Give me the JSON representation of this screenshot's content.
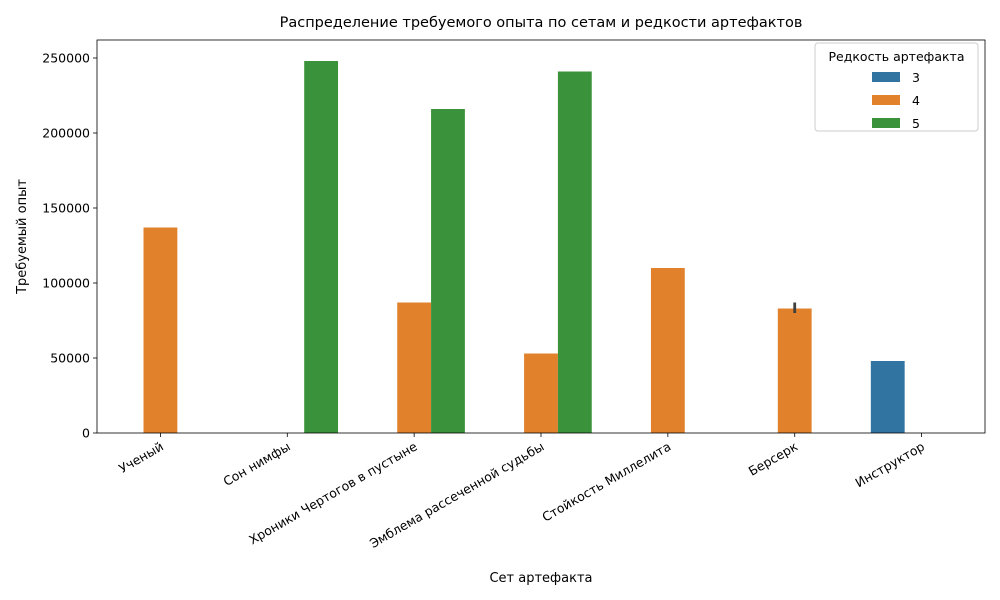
{
  "chart_data": {
    "type": "bar",
    "title": "Распределение требуемого опыта по сетам и редкости артефактов",
    "xlabel": "Сет артефакта",
    "ylabel": "Требуемый опыт",
    "categories": [
      "Ученый",
      "Сон нимфы",
      "Хроники Чертогов в пустыне",
      "Эмблема рассеченной судьбы",
      "Стойкость Миллелита",
      "Берсерк",
      "Инструктор"
    ],
    "ylim": [
      0,
      262000
    ],
    "yticks": [
      0,
      50000,
      100000,
      150000,
      200000,
      250000
    ],
    "legend": {
      "title": "Редкость артефакта",
      "placement": "top-right"
    },
    "series": [
      {
        "name": "3",
        "color": "#3274a1",
        "values": [
          null,
          null,
          null,
          null,
          null,
          null,
          48000
        ]
      },
      {
        "name": "4",
        "color": "#e1812c",
        "values": [
          137000,
          null,
          87000,
          53000,
          110000,
          83000,
          null
        ]
      },
      {
        "name": "5",
        "color": "#3a923a",
        "values": [
          null,
          248000,
          216000,
          241000,
          null,
          null,
          null
        ]
      }
    ],
    "error_bars": [
      {
        "series": "4",
        "category": "Берсерк",
        "low": 80000,
        "high": 87000
      }
    ],
    "grid": false
  }
}
